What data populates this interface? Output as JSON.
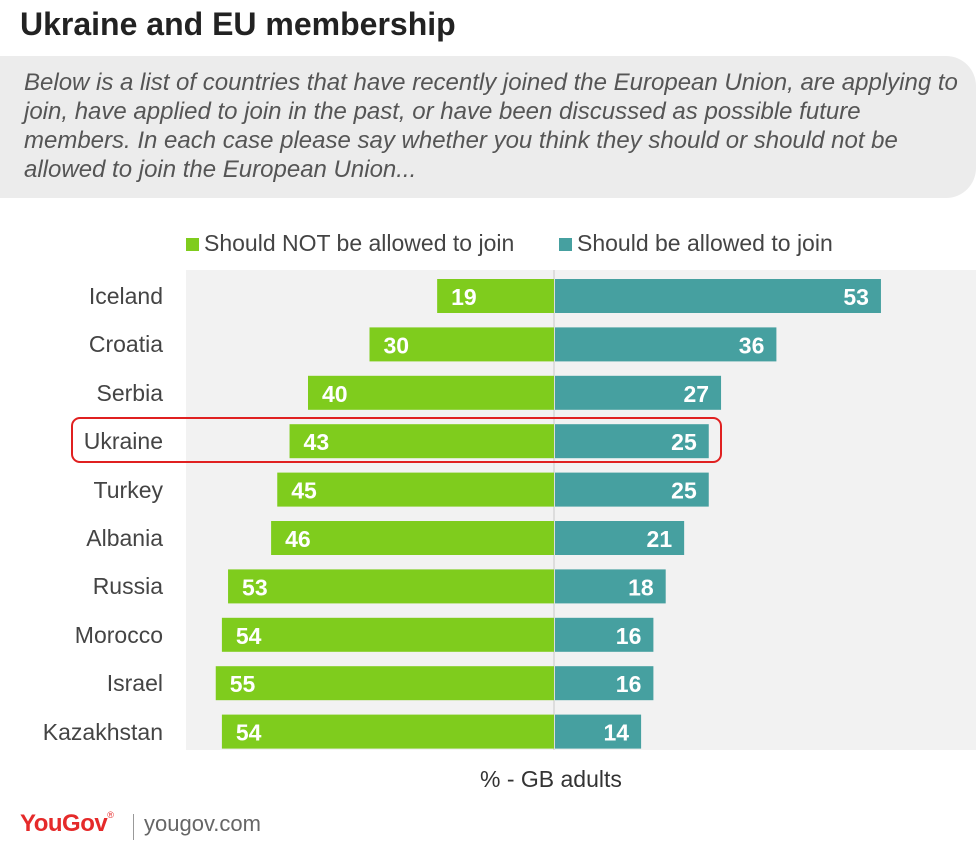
{
  "title": "Ukraine and EU membership",
  "question": "Below is a list of countries that have recently joined the European Union, are applying to join, have applied to join in the past, or have been discussed as possible future members. In each case please say whether you think they should or should not be allowed to join the European Union...",
  "footnote": "% - GB adults",
  "brand": {
    "logo": "YouGov",
    "logo_mark": "®",
    "site": "yougov.com"
  },
  "highlight_category": "Ukraine",
  "chart_data": {
    "type": "bar",
    "orientation": "horizontal-diverging",
    "categories": [
      "Iceland",
      "Croatia",
      "Serbia",
      "Ukraine",
      "Turkey",
      "Albania",
      "Russia",
      "Morocco",
      "Israel",
      "Kazakhstan"
    ],
    "series": [
      {
        "name": "Should NOT be allowed to join",
        "color": "#7fcc1d",
        "values": [
          19,
          30,
          40,
          43,
          45,
          46,
          53,
          54,
          55,
          54
        ]
      },
      {
        "name": "Should be allowed to join",
        "color": "#46a0a0",
        "values": [
          53,
          36,
          27,
          25,
          25,
          21,
          18,
          16,
          16,
          14
        ]
      }
    ],
    "legend": "top",
    "grid": false
  }
}
